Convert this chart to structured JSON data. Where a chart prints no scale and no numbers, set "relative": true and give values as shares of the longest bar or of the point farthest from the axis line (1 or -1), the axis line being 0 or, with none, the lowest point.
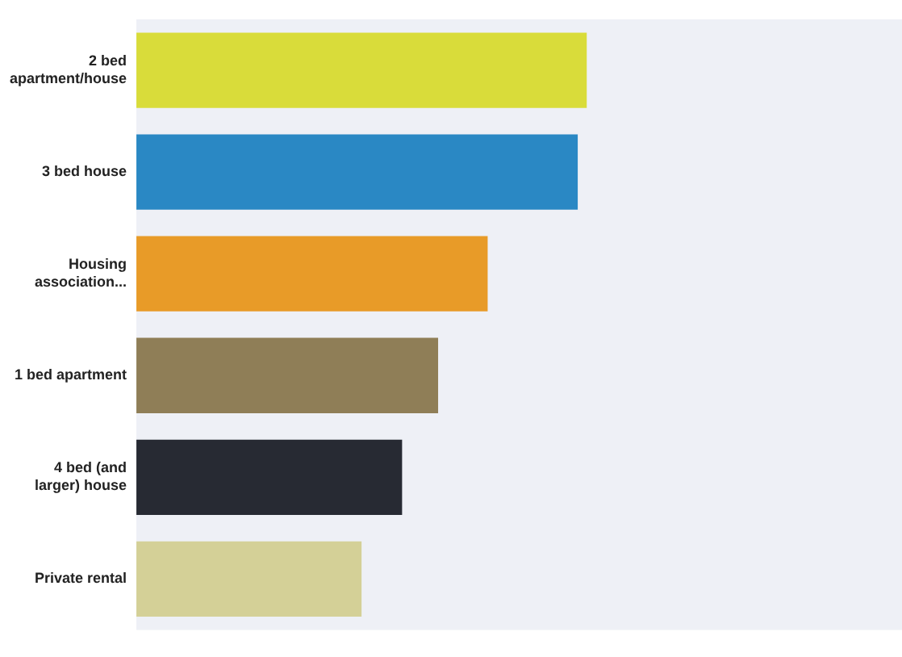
{
  "chart_data": {
    "type": "bar",
    "orientation": "horizontal",
    "relative": true,
    "categories": [
      "2 bed apartment/house",
      "3 bed house",
      "Housing association...",
      "1 bed apartment",
      "4 bed (and larger) house",
      "Private rental"
    ],
    "values": [
      1,
      0.98,
      0.78,
      0.67,
      0.59,
      0.5
    ],
    "colors": [
      "#d9dc3a",
      "#2a88c4",
      "#e89b28",
      "#8f7e57",
      "#272a33",
      "#d4d097"
    ],
    "legend": false
  }
}
